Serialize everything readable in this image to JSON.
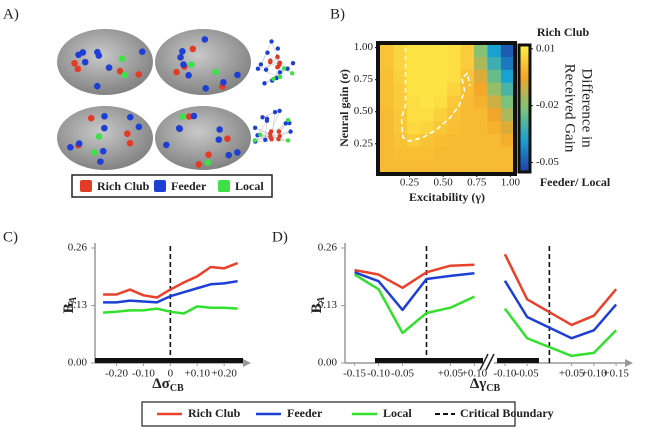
{
  "panel_labels": [
    "A)",
    "B)",
    "C)",
    "D)"
  ],
  "panel_a": {
    "legend": [
      {
        "name": "Rich Club",
        "color": "#e23b26"
      },
      {
        "name": "Feeder",
        "color": "#1d3fd6"
      },
      {
        "name": "Local",
        "color": "#3ee04a"
      }
    ]
  },
  "chart_data": [
    {
      "type": "heatmap",
      "xlabel": "Excitability (γ)",
      "ylabel": "Neural gain (σ)",
      "x": [
        0.08,
        0.18,
        0.28,
        0.38,
        0.48,
        0.58,
        0.68,
        0.78,
        0.88,
        0.98
      ],
      "y": [
        0.08,
        0.18,
        0.28,
        0.38,
        0.48,
        0.58,
        0.68,
        0.78,
        0.88,
        0.98
      ],
      "z": [
        [
          0,
          0,
          0,
          0,
          0,
          0,
          0,
          0,
          0,
          0
        ],
        [
          0,
          0.001,
          0.001,
          0.001,
          0,
          0,
          0,
          0,
          0,
          0
        ],
        [
          0,
          0.002,
          0.004,
          0.002,
          0.001,
          0,
          0,
          0,
          0,
          -0.003
        ],
        [
          0,
          0.003,
          0.007,
          0.006,
          0.003,
          0.001,
          0,
          0,
          -0.002,
          -0.008
        ],
        [
          0,
          0.003,
          0.008,
          0.008,
          0.005,
          0.002,
          0,
          0,
          -0.005,
          -0.015
        ],
        [
          0.001,
          0.004,
          0.008,
          0.009,
          0.008,
          0.003,
          0,
          -0.002,
          -0.01,
          -0.022
        ],
        [
          0.001,
          0.004,
          0.009,
          0.009,
          0.009,
          0.006,
          0.001,
          -0.004,
          -0.018,
          -0.03
        ],
        [
          0.001,
          0.005,
          0.009,
          0.009,
          0.009,
          0.008,
          0.002,
          -0.008,
          -0.025,
          -0.038
        ],
        [
          0.002,
          0.006,
          0.009,
          0.009,
          0.009,
          0.008,
          0.004,
          -0.015,
          -0.032,
          -0.045
        ],
        [
          0.002,
          0.006,
          0.009,
          0.009,
          0.009,
          0.008,
          0.004,
          -0.02,
          -0.038,
          -0.05
        ]
      ],
      "xlim": [
        0.03,
        1.02
      ],
      "ylim": [
        0.03,
        1.02
      ],
      "xticks": [
        0.25,
        {
          "value": 0.5,
          "label": "0.50"
        },
        0.75,
        {
          "value": 1,
          "label": "1.00"
        }
      ],
      "yticks": [
        0.25,
        {
          "value": 0.5,
          "label": "0.50"
        },
        0.75,
        {
          "value": 1,
          "label": "1.00"
        }
      ],
      "clim": [
        -0.055,
        0.012
      ],
      "colormap": [
        "#1f3fa8",
        "#1aa0d0",
        "#7cc47a",
        "#f4a52a",
        "#fff04a"
      ],
      "colorbar_ticks": [
        0.01,
        -0.02,
        -0.05
      ],
      "colorbar_top": "Rich Club",
      "colorbar_bottom": "Feeder/ Local",
      "colorbar_label": [
        "Difference in",
        "Received Gain"
      ],
      "boundary": {
        "x": [
          0.22,
          0.22,
          0.19,
          0.2,
          0.25,
          0.35,
          0.45,
          0.55,
          0.62,
          0.66,
          0.64,
          0.68,
          0.7
        ],
        "y": [
          1.0,
          0.55,
          0.45,
          0.3,
          0.27,
          0.3,
          0.36,
          0.45,
          0.55,
          0.66,
          0.76,
          0.8,
          0.7
        ]
      }
    },
    {
      "type": "line",
      "xlabel": {
        "main": "Δσ",
        "sub": "CB"
      },
      "ylabel": {
        "main": "B",
        "sub": "A"
      },
      "x": [
        -0.25,
        -0.2,
        -0.15,
        -0.1,
        -0.05,
        0,
        0.05,
        0.1,
        0.15,
        0.2,
        0.25
      ],
      "series": [
        {
          "name": "Rich Club",
          "color": "#e8412c",
          "values": [
            0.155,
            0.155,
            0.166,
            0.153,
            0.148,
            0.166,
            0.182,
            0.196,
            0.217,
            0.214,
            0.226
          ]
        },
        {
          "name": "Feeder",
          "color": "#1d3fd6",
          "values": [
            0.137,
            0.137,
            0.141,
            0.139,
            0.137,
            0.151,
            0.16,
            0.169,
            0.178,
            0.18,
            0.185
          ]
        },
        {
          "name": "Local",
          "color": "#33e02e",
          "values": [
            0.114,
            0.116,
            0.119,
            0.119,
            0.123,
            0.116,
            0.112,
            0.128,
            0.125,
            0.125,
            0.123
          ]
        }
      ],
      "xlim": [
        -0.28,
        0.27
      ],
      "ylim": [
        0,
        0.26
      ],
      "xticks": [
        {
          "value": -0.2,
          "label": "-0.20"
        },
        {
          "value": -0.1,
          "label": "-0.10"
        },
        0,
        {
          "value": 0.1,
          "label": "+0.10"
        },
        {
          "value": 0.2,
          "label": "+0.20"
        }
      ],
      "yticks": [
        {
          "value": 0,
          "label": "0.00"
        },
        0.13,
        0.26
      ],
      "critical_x": 0,
      "critical_label": "Critical Boundary"
    },
    {
      "type": "line",
      "ylabel": {
        "main": "B",
        "sub": "A"
      },
      "x": [
        -0.15,
        -0.1,
        -0.05,
        0,
        0.05,
        0.1
      ],
      "series": [
        {
          "color": "#e8412c",
          "values": [
            0.21,
            0.2,
            0.17,
            0.205,
            0.22,
            0.222
          ]
        },
        {
          "color": "#1d3fd6",
          "values": [
            0.205,
            0.185,
            0.12,
            0.19,
            0.197,
            0.203
          ]
        },
        {
          "color": "#33e02e",
          "values": [
            0.2,
            0.167,
            0.068,
            0.113,
            0.125,
            0.15
          ]
        }
      ],
      "xlim": [
        -0.17,
        0.12
      ],
      "ylim": [
        0,
        0.26
      ],
      "xticks": [
        {
          "value": -0.15,
          "label": "-0.15"
        },
        {
          "value": -0.1,
          "label": "-0.10"
        },
        {
          "value": -0.05,
          "label": "-0.05"
        },
        {
          "value": 0.05,
          "label": "+0.05"
        },
        {
          "value": 0.1,
          "label": "+0.10"
        }
      ],
      "yticks": [
        {
          "value": 0,
          "label": "0.00"
        },
        0.13,
        0.26
      ],
      "critical_x": 0
    },
    {
      "type": "line",
      "xlabel": {
        "main": "Δγ",
        "sub": "CB"
      },
      "x": [
        -0.1,
        -0.05,
        0.05,
        0.1,
        0.15
      ],
      "series": [
        {
          "color": "#e8412c",
          "values": [
            0.246,
            0.144,
            0.086,
            0.107,
            0.167
          ]
        },
        {
          "color": "#1d3fd6",
          "values": [
            0.186,
            0.104,
            0.056,
            0.074,
            0.132
          ]
        },
        {
          "color": "#33e02e",
          "values": [
            0.123,
            0.056,
            0.016,
            0.023,
            0.074
          ]
        }
      ],
      "xlim": [
        -0.12,
        0.17
      ],
      "ylim": [
        0,
        0.26
      ],
      "xticks": [
        {
          "value": -0.1,
          "label": "-0.10"
        },
        {
          "value": -0.05,
          "label": "-0.05"
        },
        {
          "value": 0.05,
          "label": "+0.05"
        },
        {
          "value": 0.1,
          "label": "+0.10"
        },
        {
          "value": 0.15,
          "label": "+0.15"
        }
      ],
      "critical_x": 0
    }
  ]
}
